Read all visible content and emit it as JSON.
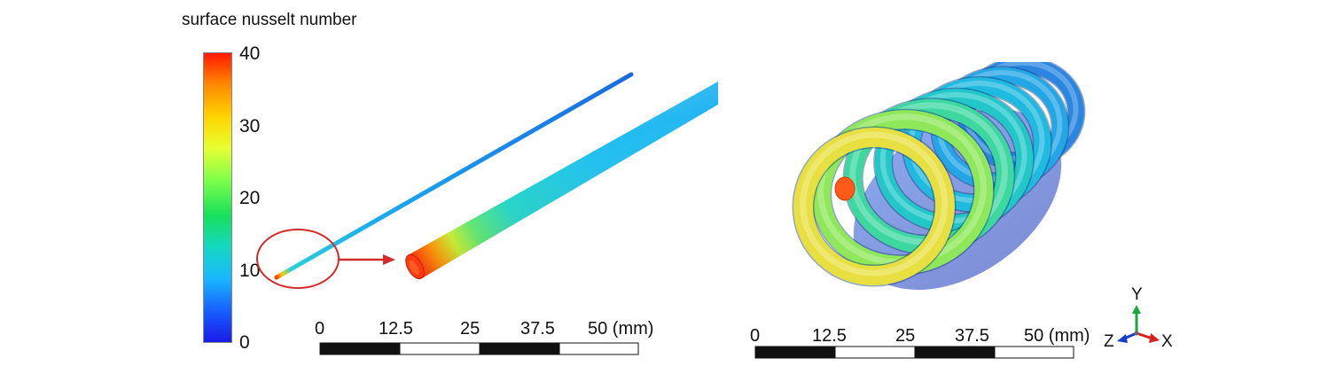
{
  "legend": {
    "title": "surface nusselt number",
    "ticks": [
      "40",
      "30",
      "20",
      "10",
      "0"
    ],
    "min": 0,
    "max": 40,
    "colors": [
      "#ff1a00",
      "#ff8a00",
      "#ffd400",
      "#e6ff33",
      "#7dff4a",
      "#19e05a",
      "#15d8c0",
      "#19b8ff",
      "#1760ff",
      "#1a1ae6"
    ]
  },
  "left_panel": {
    "scale_bar": {
      "labels": [
        "0",
        "12.5",
        "25",
        "37.5",
        "50 (mm)"
      ]
    }
  },
  "right_panel": {
    "scale_bar": {
      "labels": [
        "0",
        "12.5",
        "25",
        "37.5",
        "50 (mm)"
      ]
    },
    "triad": {
      "y": "Y",
      "z": "Z",
      "x": "X"
    }
  },
  "colors": {
    "highlight_circle": "#d42b2b",
    "arrow": "#d42b2b"
  }
}
